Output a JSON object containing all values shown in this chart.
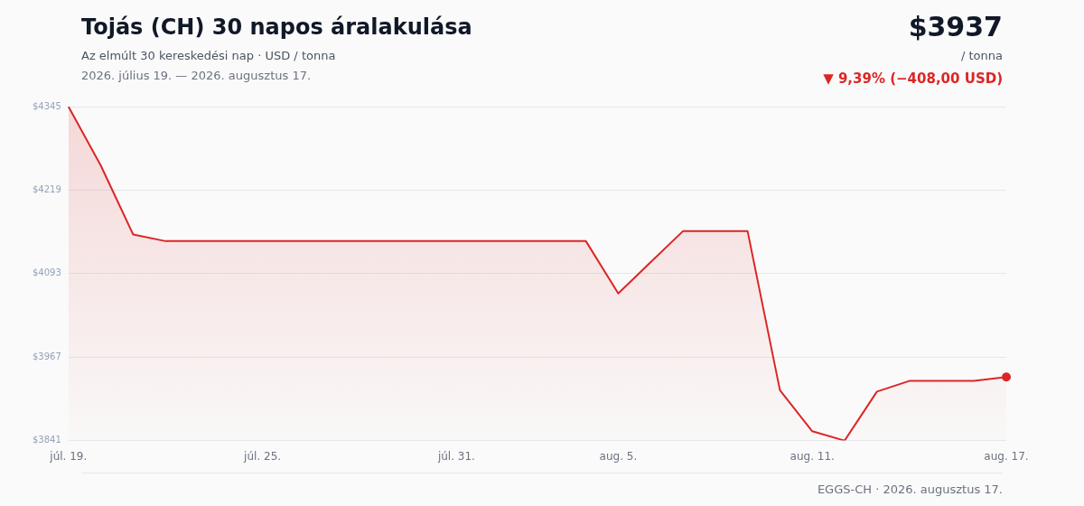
{
  "chart_data": {
    "type": "area",
    "title": "Tojás (CH) 30 napos áralakulása",
    "subtitle": "Az elmúlt 30 kereskedési nap · USD / tonna",
    "annotations": [
      "2026. július 19. — 2026. augusztus 17.",
      "$3937",
      "/ tonna",
      "▼ 9,39% (−408,00 USD)",
      "EGGS-CH · 2026. augusztus 17."
    ],
    "categories": [
      "júl. 19.",
      null,
      null,
      null,
      null,
      null,
      "júl. 25.",
      null,
      null,
      null,
      null,
      null,
      "júl. 31.",
      null,
      null,
      null,
      null,
      "aug. 5.",
      null,
      null,
      null,
      null,
      null,
      "aug. 11.",
      null,
      null,
      null,
      null,
      null,
      "aug. 17."
    ],
    "series": [
      {
        "color": "#dc2626",
        "values": [
          4345,
          4256,
          4152,
          4142,
          4142,
          4142,
          4142,
          4142,
          4142,
          4142,
          4142,
          4142,
          4142,
          4142,
          4142,
          4142,
          4142,
          4063,
          4110,
          4157,
          4157,
          4157,
          3917,
          3855,
          3841,
          3915,
          3931,
          3931,
          3931,
          3937
        ]
      }
    ],
    "ylim": [
      3841,
      4345
    ],
    "yticks": [
      {
        "value": 3841,
        "label": "$3841"
      },
      {
        "value": 3967,
        "label": "$3967"
      },
      {
        "value": 4093,
        "label": "$4093"
      },
      {
        "value": 4219,
        "label": "$4219"
      },
      {
        "value": 4345,
        "label": "$4345"
      }
    ],
    "grid": "y",
    "legend": false
  }
}
